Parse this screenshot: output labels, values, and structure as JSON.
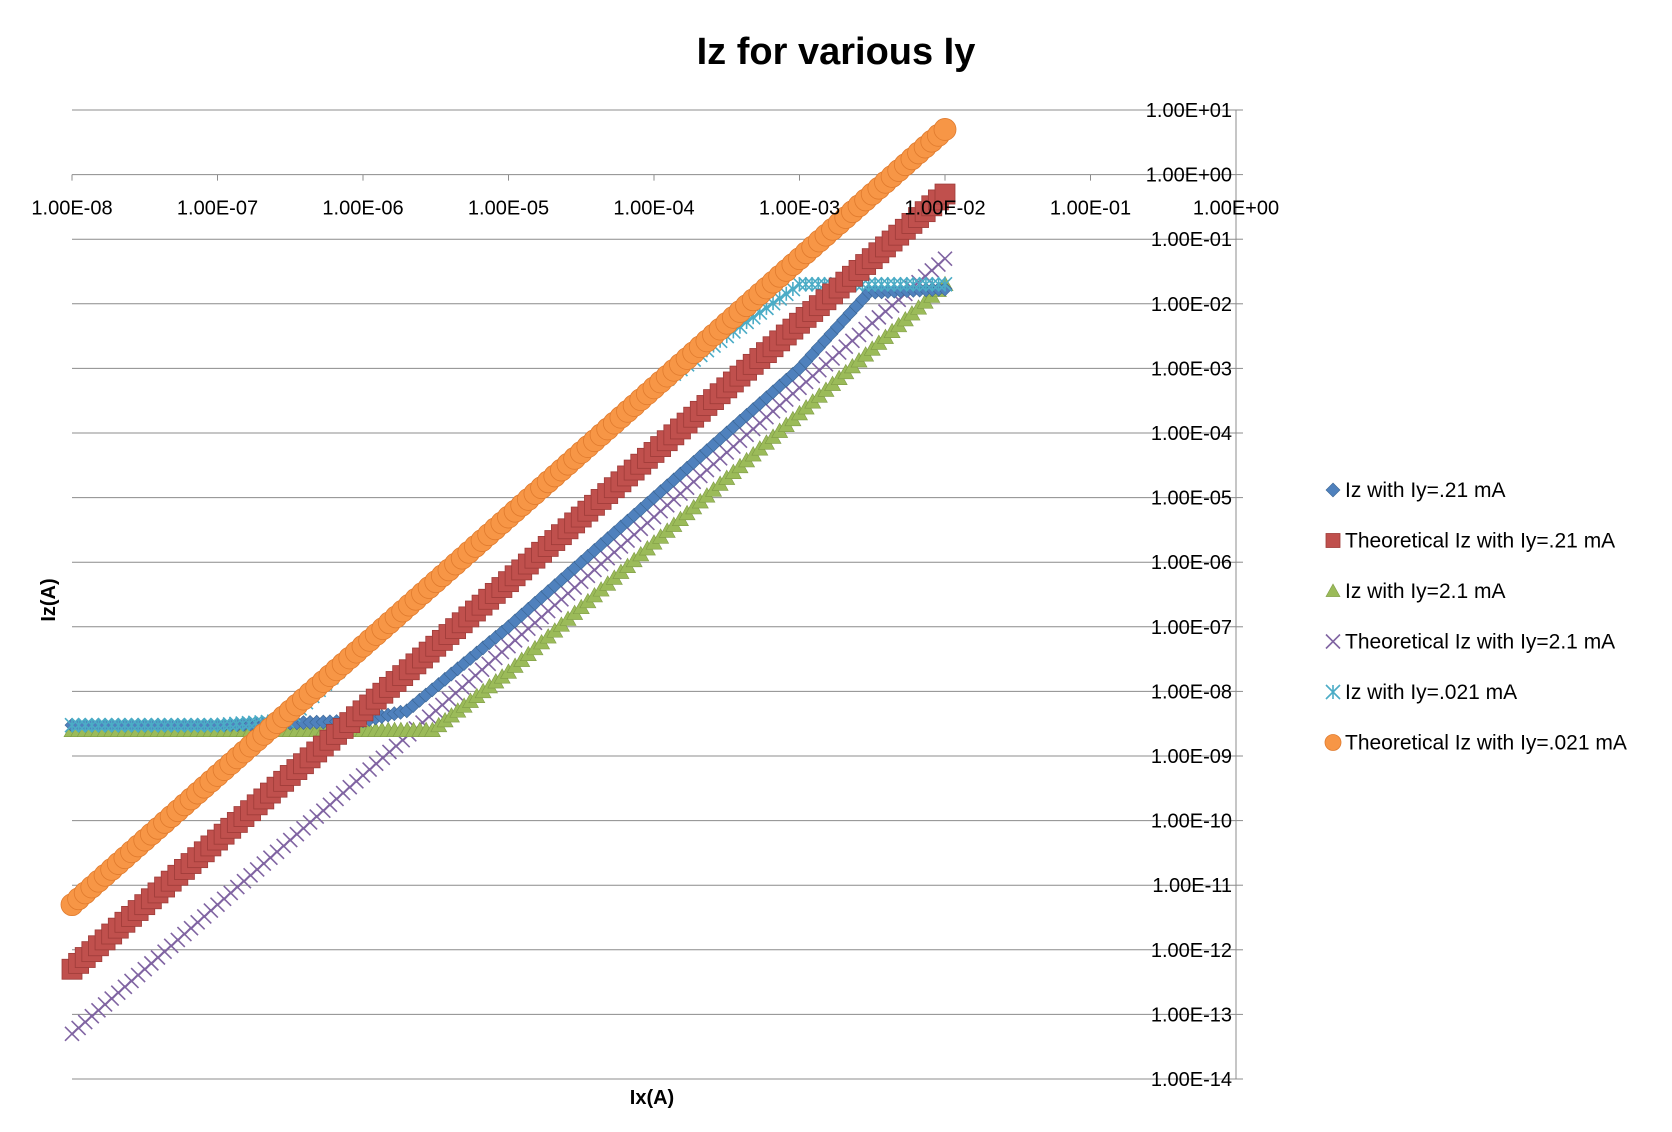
{
  "chart_data": {
    "type": "scatter",
    "title": "Iz for various Iy",
    "xlabel": "Ix(A)",
    "ylabel": "Iz(A)",
    "x_scale": "log",
    "y_scale": "log",
    "xlim": [
      1e-08,
      1
    ],
    "ylim": [
      1e-14,
      10
    ],
    "x_ticks": [
      "1.00E-08",
      "1.00E-07",
      "1.00E-06",
      "1.00E-05",
      "1.00E-04",
      "1.00E-03",
      "1.00E-02",
      "1.00E-01",
      "1.00E+00"
    ],
    "y_ticks": [
      "1.00E+01",
      "1.00E+00",
      "1.00E-01",
      "1.00E-02",
      "1.00E-03",
      "1.00E-04",
      "1.00E-05",
      "1.00E-06",
      "1.00E-07",
      "1.00E-08",
      "1.00E-09",
      "1.00E-10",
      "1.00E-11",
      "1.00E-12",
      "1.00E-13",
      "1.00E-14"
    ],
    "grid": "horizontal",
    "legend_position": "right",
    "series": [
      {
        "name": "Iz with Iy=.21 mA",
        "marker": "diamond",
        "color": "#4f81bd",
        "x": [
          1e-08,
          1e-07,
          1e-06,
          2e-06,
          1e-05,
          0.0001,
          0.001,
          0.003,
          0.01
        ],
        "y": [
          3e-09,
          3e-09,
          3.5e-09,
          5e-09,
          1e-07,
          1e-05,
          0.001,
          0.015,
          0.017
        ]
      },
      {
        "name": "Theoretical Iz with Iy=.21 mA",
        "marker": "square",
        "color": "#c0504d",
        "x": [
          1e-08,
          1e-07,
          1e-06,
          1e-05,
          0.0001,
          0.001,
          0.01
        ],
        "y": [
          5e-13,
          5e-11,
          5e-09,
          5e-07,
          5e-05,
          0.005,
          0.5
        ]
      },
      {
        "name": "Iz with Iy=2.1 mA",
        "marker": "triangle",
        "color": "#9bbb59",
        "x": [
          1e-08,
          1e-07,
          1e-06,
          3e-06,
          1e-05,
          0.0001,
          0.001,
          0.01
        ],
        "y": [
          2.5e-09,
          2.5e-09,
          2.5e-09,
          2.5e-09,
          2e-08,
          2e-06,
          0.0002,
          0.02
        ]
      },
      {
        "name": "Theoretical Iz with Iy=2.1 mA",
        "marker": "x",
        "color": "#8064a2",
        "x": [
          1e-08,
          1e-07,
          1e-06,
          1e-05,
          0.0001,
          0.001,
          0.01
        ],
        "y": [
          5e-14,
          5e-12,
          5e-10,
          5e-08,
          5e-06,
          0.0005,
          0.05
        ]
      },
      {
        "name": "Iz with Iy=.021 mA",
        "marker": "star",
        "color": "#4bacc6",
        "x": [
          1e-08,
          1e-07,
          3e-07,
          1e-06,
          1e-05,
          0.0001,
          0.001,
          0.002,
          0.01
        ],
        "y": [
          3e-09,
          3e-09,
          3.5e-09,
          5e-08,
          5e-06,
          0.0005,
          0.02,
          0.02,
          0.02
        ]
      },
      {
        "name": "Theoretical Iz with Iy=.021 mA",
        "marker": "circle",
        "color": "#f79646",
        "x": [
          1e-08,
          1e-07,
          1e-06,
          1e-05,
          0.0001,
          0.001,
          0.01
        ],
        "y": [
          5e-12,
          5e-10,
          5e-08,
          5e-06,
          0.0005,
          0.05,
          5
        ]
      }
    ]
  }
}
